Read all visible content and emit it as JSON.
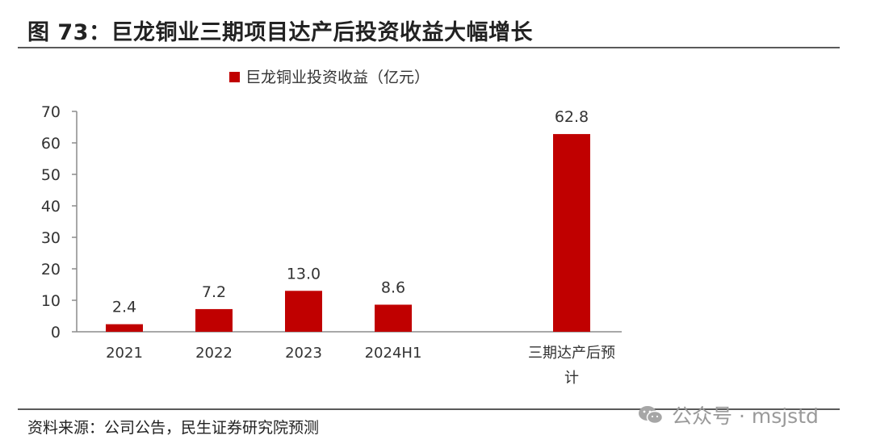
{
  "header": {
    "title": "图 73：巨龙铜业三期项目达产后投资收益大幅增长"
  },
  "footer": {
    "source": "资料来源：公司公告，民生证券研究院预测"
  },
  "watermark": {
    "text": "公众号 · msjstd",
    "icon": "wechat-icon"
  },
  "colors": {
    "bar": "#c00000",
    "axis": "#8c8c8c",
    "text": "#333333"
  },
  "chart_data": {
    "type": "bar",
    "title": "",
    "categories": [
      "2021",
      "2022",
      "2023",
      "2024H1",
      "三期达产后预计"
    ],
    "category_lines": [
      [
        "2021"
      ],
      [
        "2022"
      ],
      [
        "2023"
      ],
      [
        "2024H1"
      ],
      [
        "三期达产后预",
        "计"
      ]
    ],
    "series": [
      {
        "name": "巨龙铜业投资收益（亿元）",
        "values": [
          2.4,
          7.2,
          13.0,
          8.6,
          62.8
        ]
      }
    ],
    "data_labels": [
      "2.4",
      "7.2",
      "13.0",
      "8.6",
      "62.8"
    ],
    "ylim": [
      0,
      70
    ],
    "yticks": [
      0,
      10,
      20,
      30,
      40,
      50,
      60,
      70
    ],
    "xlabel": "",
    "ylabel": "",
    "legend": "top-center",
    "grid": false
  }
}
